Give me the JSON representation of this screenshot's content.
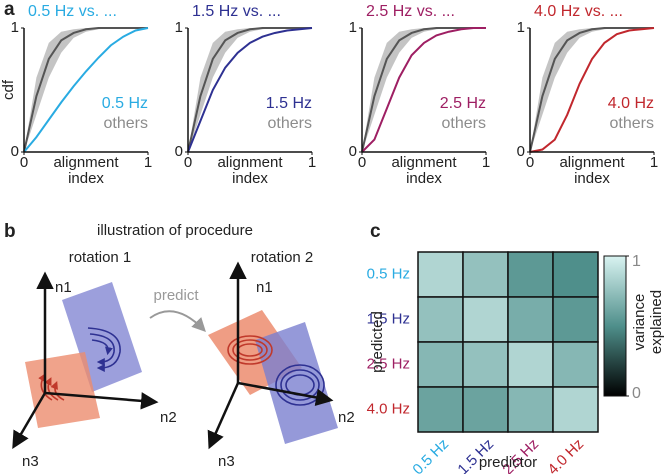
{
  "panel_labels": [
    "a",
    "b",
    "c"
  ],
  "diagram": {
    "title": "illustration of procedure",
    "rotations": [
      "rotation 1",
      "rotation 2"
    ],
    "axes": [
      "n1",
      "n2",
      "n3"
    ],
    "arrow": "predict"
  },
  "chart_data": [
    {
      "type": "line",
      "title": "0.5 Hz vs. ...",
      "ylabel": "cdf",
      "xlabel": [
        "alignment",
        "index"
      ],
      "xlim": [
        0,
        1
      ],
      "ylim": [
        0,
        1
      ],
      "xticks": [
        0,
        1
      ],
      "yticks": [
        0,
        1
      ],
      "x": [
        0,
        0.1,
        0.2,
        0.3,
        0.4,
        0.5,
        0.6,
        0.7,
        0.8,
        0.9,
        1
      ],
      "series": [
        {
          "name": "0.5 Hz",
          "color": "#29abe2",
          "values": [
            0,
            0.12,
            0.26,
            0.4,
            0.53,
            0.65,
            0.76,
            0.86,
            0.93,
            0.98,
            1
          ]
        },
        {
          "name": "others",
          "color": "#8c8c8c",
          "values": [
            0,
            0.45,
            0.75,
            0.9,
            0.96,
            0.99,
            1,
            1,
            1,
            1,
            1
          ],
          "lower": [
            0,
            0.3,
            0.6,
            0.8,
            0.92,
            0.97,
            0.99,
            1,
            1,
            1,
            1
          ],
          "upper": [
            0,
            0.6,
            0.88,
            0.97,
            0.99,
            1,
            1,
            1,
            1,
            1,
            1
          ]
        }
      ]
    },
    {
      "type": "line",
      "title": "1.5 Hz vs. ...",
      "xlabel": [
        "alignment",
        "index"
      ],
      "xlim": [
        0,
        1
      ],
      "ylim": [
        0,
        1
      ],
      "xticks": [
        0,
        1
      ],
      "yticks": [
        0,
        1
      ],
      "x": [
        0,
        0.1,
        0.2,
        0.3,
        0.4,
        0.5,
        0.6,
        0.7,
        0.8,
        0.9,
        1
      ],
      "series": [
        {
          "name": "1.5 Hz",
          "color": "#2e3192",
          "values": [
            0,
            0.25,
            0.5,
            0.68,
            0.8,
            0.88,
            0.93,
            0.96,
            0.98,
            0.99,
            1
          ]
        },
        {
          "name": "others",
          "color": "#8c8c8c",
          "values": [
            0,
            0.45,
            0.75,
            0.9,
            0.96,
            0.99,
            1,
            1,
            1,
            1,
            1
          ],
          "lower": [
            0,
            0.3,
            0.6,
            0.8,
            0.92,
            0.97,
            0.99,
            1,
            1,
            1,
            1
          ],
          "upper": [
            0,
            0.6,
            0.88,
            0.97,
            0.99,
            1,
            1,
            1,
            1,
            1,
            1
          ]
        }
      ]
    },
    {
      "type": "line",
      "title": "2.5 Hz vs. ...",
      "xlabel": [
        "alignment",
        "index"
      ],
      "xlim": [
        0,
        1
      ],
      "ylim": [
        0,
        1
      ],
      "xticks": [
        0,
        1
      ],
      "yticks": [
        0,
        1
      ],
      "x": [
        0,
        0.1,
        0.2,
        0.3,
        0.4,
        0.5,
        0.6,
        0.7,
        0.8,
        0.9,
        1
      ],
      "series": [
        {
          "name": "2.5 Hz",
          "color": "#9e1f63",
          "values": [
            0,
            0.1,
            0.35,
            0.6,
            0.78,
            0.88,
            0.94,
            0.97,
            0.99,
            1,
            1
          ]
        },
        {
          "name": "others",
          "color": "#8c8c8c",
          "values": [
            0,
            0.45,
            0.75,
            0.9,
            0.96,
            0.99,
            1,
            1,
            1,
            1,
            1
          ],
          "lower": [
            0,
            0.3,
            0.6,
            0.8,
            0.92,
            0.97,
            0.99,
            1,
            1,
            1,
            1
          ],
          "upper": [
            0,
            0.6,
            0.88,
            0.97,
            0.99,
            1,
            1,
            1,
            1,
            1,
            1
          ]
        }
      ]
    },
    {
      "type": "line",
      "title": "4.0 Hz vs. ...",
      "xlabel": [
        "alignment",
        "index"
      ],
      "xlim": [
        0,
        1
      ],
      "ylim": [
        0,
        1
      ],
      "xticks": [
        0,
        1
      ],
      "yticks": [
        0,
        1
      ],
      "x": [
        0,
        0.1,
        0.2,
        0.3,
        0.4,
        0.5,
        0.6,
        0.7,
        0.8,
        0.9,
        1
      ],
      "series": [
        {
          "name": "4.0 Hz",
          "color": "#c1272d",
          "values": [
            0,
            0.02,
            0.1,
            0.3,
            0.55,
            0.75,
            0.88,
            0.95,
            0.98,
            0.99,
            1
          ]
        },
        {
          "name": "others",
          "color": "#8c8c8c",
          "values": [
            0,
            0.45,
            0.75,
            0.9,
            0.96,
            0.99,
            1,
            1,
            1,
            1,
            1
          ],
          "lower": [
            0,
            0.3,
            0.6,
            0.8,
            0.92,
            0.97,
            0.99,
            1,
            1,
            1,
            1
          ],
          "upper": [
            0,
            0.6,
            0.88,
            0.97,
            0.99,
            1,
            1,
            1,
            1,
            1,
            1
          ]
        }
      ]
    },
    {
      "type": "heatmap",
      "xlabel": "predictor",
      "ylabel": "predicted",
      "categories": [
        "0.5 Hz",
        "1.5 Hz",
        "2.5 Hz",
        "4.0 Hz"
      ],
      "label_colors": [
        "#29abe2",
        "#2e3192",
        "#9e1f63",
        "#c1272d"
      ],
      "values": [
        [
          0.85,
          0.75,
          0.55,
          0.5
        ],
        [
          0.75,
          0.85,
          0.65,
          0.55
        ],
        [
          0.7,
          0.75,
          0.85,
          0.7
        ],
        [
          0.6,
          0.6,
          0.7,
          0.85
        ]
      ],
      "clim": [
        0,
        1
      ],
      "cticks": [
        0,
        1
      ],
      "colormap": [
        "#000000",
        "#4f8f8b",
        "#d9f3f1"
      ],
      "colorbar_label": [
        "variance",
        "explained"
      ]
    }
  ]
}
